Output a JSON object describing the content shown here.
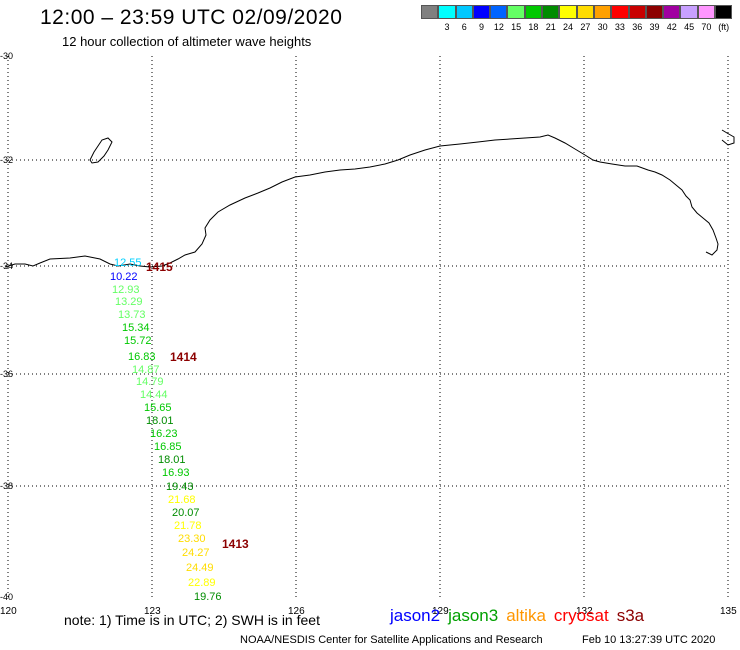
{
  "header": {
    "title": "12:00 – 23:59 UTC 02/09/2020",
    "subtitle": "12 hour collection of altimeter wave heights"
  },
  "legend": {
    "colors": [
      "#808080",
      "#00ffff",
      "#00c8ff",
      "#0000ff",
      "#0064ff",
      "#64ff64",
      "#00c800",
      "#008c00",
      "#ffff00",
      "#ffdc00",
      "#ffa000",
      "#ff0000",
      "#c80000",
      "#8c0000",
      "#a000a0",
      "#c8a0ff",
      "#ff96ff",
      "#000000"
    ],
    "labels": [
      "",
      "3",
      "6",
      "9",
      "12",
      "15",
      "18",
      "21",
      "24",
      "27",
      "30",
      "33",
      "36",
      "39",
      "42",
      "45",
      "70",
      "(ft)"
    ]
  },
  "axes": {
    "lon_ticks": [
      "120",
      "123",
      "126",
      "129",
      "132",
      "135"
    ],
    "lat_ticks": [
      "-30",
      "-32",
      "-34",
      "-36",
      "-38",
      "-40"
    ]
  },
  "observations": [
    {
      "value": "12.55",
      "color": "#00d0ff"
    },
    {
      "value": "10.22",
      "color": "#0000ff"
    },
    {
      "value": "12.93",
      "color": "#64ff64"
    },
    {
      "value": "13.29",
      "color": "#64ff64"
    },
    {
      "value": "13.73",
      "color": "#64ff64"
    },
    {
      "value": "15.34",
      "color": "#00c800"
    },
    {
      "value": "15.72",
      "color": "#00c800"
    },
    {
      "value": "16.83",
      "color": "#00c800"
    },
    {
      "value": "14.87",
      "color": "#64ff64"
    },
    {
      "value": "14.79",
      "color": "#64ff64"
    },
    {
      "value": "14.44",
      "color": "#64ff64"
    },
    {
      "value": "15.65",
      "color": "#00c800"
    },
    {
      "value": "18.01",
      "color": "#008c00"
    },
    {
      "value": "16.23",
      "color": "#00c800"
    },
    {
      "value": "16.85",
      "color": "#00c800"
    },
    {
      "value": "18.01",
      "color": "#008c00"
    },
    {
      "value": "16.93",
      "color": "#00c800"
    },
    {
      "value": "19.43",
      "color": "#008c00"
    },
    {
      "value": "21.68",
      "color": "#ffff00"
    },
    {
      "value": "20.07",
      "color": "#008c00"
    },
    {
      "value": "21.78",
      "color": "#ffff00"
    },
    {
      "value": "23.30",
      "color": "#ffdc00"
    },
    {
      "value": "24.27",
      "color": "#ffdc00"
    },
    {
      "value": "24.49",
      "color": "#ffdc00"
    },
    {
      "value": "22.89",
      "color": "#ffff00"
    },
    {
      "value": "19.76",
      "color": "#008c00"
    }
  ],
  "time_labels": [
    {
      "text": "1415",
      "color": "#8c0000"
    },
    {
      "text": "1414",
      "color": "#8c0000"
    },
    {
      "text": "1413",
      "color": "#8c0000"
    }
  ],
  "footer": {
    "note": "note: 1) Time is in UTC; 2) SWH is in feet",
    "satellites": [
      {
        "name": "jason2",
        "color": "#0000ff"
      },
      {
        "name": "jason3",
        "color": "#00a000"
      },
      {
        "name": "altika",
        "color": "#ff9600"
      },
      {
        "name": "cryosat",
        "color": "#ff0000"
      },
      {
        "name": "s3a",
        "color": "#8c0000"
      }
    ],
    "credit": "NOAA/NESDIS Center for Satellite Applications and Research",
    "timestamp": "Feb 10 13:27:39 UTC 2020"
  }
}
